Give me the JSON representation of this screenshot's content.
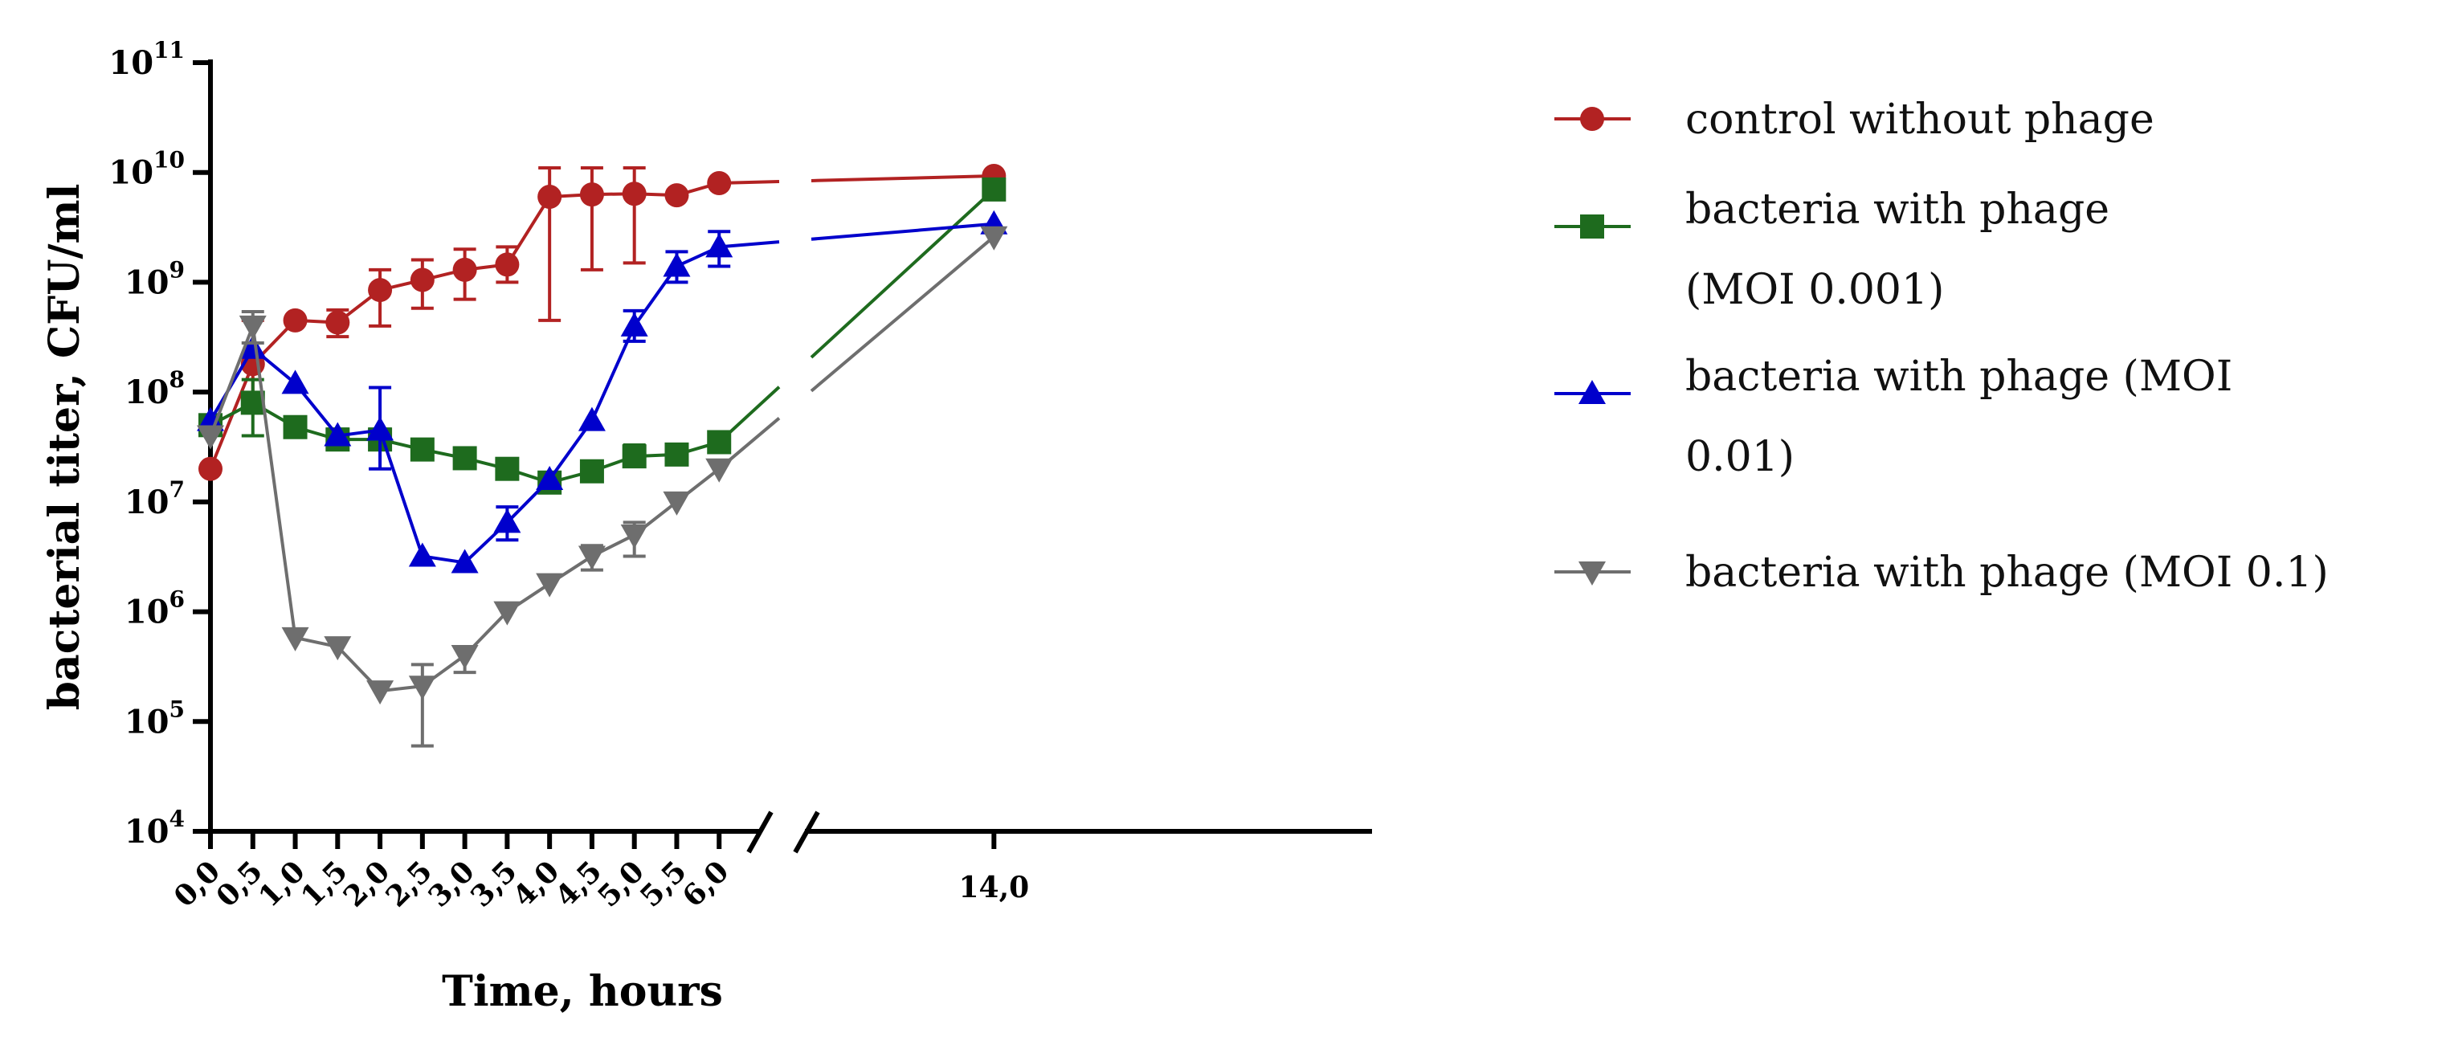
{
  "chart_data": {
    "type": "line",
    "title": "",
    "xlabel": "Time, hours",
    "ylabel": "bacterial titer, CFU/ml",
    "yscale": "log",
    "ylim": [
      10000,
      100000000000
    ],
    "xlim": [
      0,
      16
    ],
    "x_axis_break": [
      6.5,
      13
    ],
    "x": [
      0,
      0.5,
      1,
      1.5,
      2,
      2.5,
      3,
      3.5,
      4,
      4.5,
      5,
      5.5,
      6,
      14
    ],
    "xtick_labels": [
      "0,0",
      "0,5",
      "1,0",
      "1,5",
      "2,0",
      "2,5",
      "3,0",
      "3,5",
      "4,0",
      "4,5",
      "5,0",
      "5,5",
      "6,0",
      "14,0"
    ],
    "ytick_values": [
      10000,
      100000,
      1000000,
      10000000,
      100000000,
      1000000000,
      10000000000,
      100000000000
    ],
    "ytick_exponents": [
      "4",
      "5",
      "6",
      "7",
      "8",
      "9",
      "10",
      "11"
    ],
    "ytick_base": "10",
    "legend_position": "right",
    "grid": false,
    "series": [
      {
        "name": "control without phage",
        "color": "#B22222",
        "marker": "circle",
        "values": [
          20000000,
          180000000,
          450000000,
          430000000,
          850000000,
          1050000000,
          1300000000,
          1450000000,
          6000000000,
          6300000000,
          6400000000,
          6200000000,
          8000000000,
          9300000000
        ],
        "err_upper": [
          null,
          450000000,
          null,
          560000000,
          1300000000,
          1600000000,
          2000000000,
          2100000000,
          11000000000,
          11000000000,
          11000000000,
          null,
          null,
          null
        ],
        "err_lower": [
          null,
          70000000,
          null,
          320000000,
          400000000,
          580000000,
          700000000,
          1000000000,
          450000000,
          1300000000,
          1500000000,
          null,
          null,
          null
        ]
      },
      {
        "name": "bacteria with phage (MOI 0.001)",
        "legend_lines": [
          "bacteria with phage",
          "(MOI 0.001)"
        ],
        "color": "#1E6B1E",
        "marker": "square",
        "values": [
          50000000,
          80000000,
          48000000,
          37000000,
          37000000,
          30000000,
          25000000,
          20000000,
          15000000,
          19000000,
          26000000,
          27000000,
          35000000,
          7000000000
        ],
        "err_upper": [
          null,
          130000000,
          null,
          46000000,
          46000000,
          null,
          null,
          null,
          null,
          null,
          33000000,
          null,
          null,
          null
        ],
        "err_lower": [
          null,
          40000000,
          null,
          30000000,
          30000000,
          null,
          null,
          null,
          null,
          null,
          21000000,
          null,
          null,
          null
        ]
      },
      {
        "name": "bacteria with phage (MOI 0.01)",
        "legend_lines": [
          "bacteria with phage (MOI",
          "0.01)"
        ],
        "color": "#0000CC",
        "marker": "triangle-up",
        "values": [
          55000000,
          250000000,
          120000000,
          40000000,
          45000000,
          3200000,
          2800000,
          6500000,
          16000000,
          55000000,
          400000000,
          1400000000,
          2100000000,
          3400000000
        ],
        "err_upper": [
          null,
          null,
          null,
          null,
          110000000,
          null,
          null,
          9000000,
          null,
          null,
          550000000,
          1900000000,
          2900000000,
          null
        ],
        "err_lower": [
          null,
          null,
          null,
          null,
          20000000,
          null,
          null,
          4500000,
          null,
          null,
          290000000,
          1000000000,
          1400000000,
          null
        ]
      },
      {
        "name": "bacteria with phage (MOI 0.1)",
        "legend_lines": [
          "bacteria with phage (MOI 0.1)"
        ],
        "color": "#6E6E6E",
        "marker": "triangle-down",
        "values": [
          40000000,
          400000000,
          580000,
          480000,
          190000,
          210000,
          400000,
          1000000,
          1800000,
          3200000,
          5000000,
          10000000,
          20000000,
          2600000000
        ],
        "err_upper": [
          null,
          540000000,
          null,
          null,
          null,
          330000,
          null,
          null,
          null,
          4000000,
          6500000,
          null,
          null,
          null
        ],
        "err_lower": [
          null,
          280000000,
          null,
          null,
          null,
          60000,
          280000,
          null,
          null,
          2400000,
          3200000,
          null,
          null,
          null
        ]
      }
    ]
  }
}
